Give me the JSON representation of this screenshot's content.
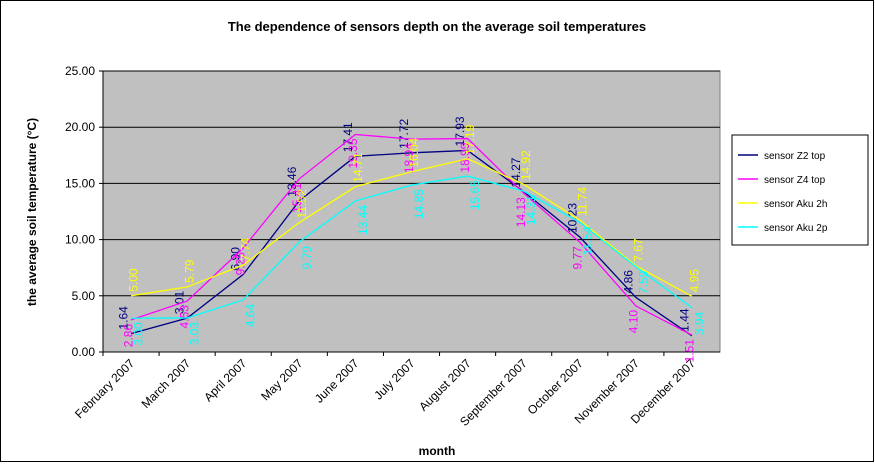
{
  "chart_data": {
    "type": "line",
    "title": "The dependence of sensors depth on the average soil temperatures",
    "x_label": "month",
    "y_label": "the average soil temperature (°C)",
    "categories": [
      "February 2007",
      "March 2007",
      "April 2007",
      "May 2007",
      "June 2007",
      "July 2007",
      "August 2007",
      "September 2007",
      "October 2007",
      "November 2007",
      "December 2007"
    ],
    "ylim": [
      0,
      25
    ],
    "yticks": [
      {
        "value": 0,
        "label": "0.00"
      },
      {
        "value": 5,
        "label": "5.00"
      },
      {
        "value": 10,
        "label": "10.00"
      },
      {
        "value": 15,
        "label": "15.00"
      },
      {
        "value": 20,
        "label": "20.00"
      },
      {
        "value": 25,
        "label": "25.00"
      }
    ],
    "grid": true,
    "legend": "right",
    "series": [
      {
        "name": "sensor Z2 top",
        "color": "#000080",
        "values": [
          1.64,
          3.01,
          6.9,
          13.46,
          17.41,
          17.72,
          17.93,
          14.27,
          10.23,
          4.86,
          1.44
        ],
        "value_labels": [
          "1.64",
          "3.01",
          "6.90",
          "13.46",
          "17.41",
          "17.72",
          "17.93",
          "14.27",
          "10.23",
          "4.86",
          "1.44"
        ]
      },
      {
        "name": "sensor Z4 top",
        "color": "#FF00FF",
        "values": [
          2.86,
          4.53,
          9.25,
          15.41,
          19.35,
          18.94,
          18.99,
          14.13,
          9.77,
          4.1,
          1.51
        ],
        "value_labels": [
          "2.86",
          "4.53",
          "9.25",
          "15.41",
          "19.35",
          "18.94",
          "18.99",
          "14.13",
          "9.77",
          "4.10",
          "1.51"
        ]
      },
      {
        "name": "sensor Aku 2h",
        "color": "#FFFF00",
        "values": [
          5,
          5.79,
          7.74,
          11.52,
          14.71,
          16.04,
          17.19,
          14.92,
          11.74,
          7.67,
          4.95
        ],
        "value_labels": [
          "5.00",
          "5.79",
          "7.74",
          "11.52",
          "14.71",
          "16.04",
          "17.19",
          "14.92",
          "11.74",
          "7.67",
          "4.95"
        ]
      },
      {
        "name": "sensor Aku 2p",
        "color": "#00FFFF",
        "values": [
          3,
          3.03,
          4.64,
          9.79,
          13.44,
          14.85,
          15.65,
          14.31,
          11.54,
          7.59,
          3.94
        ],
        "value_labels": [
          "3.00",
          "3.03",
          "4.64",
          "9.79",
          "13.44",
          "14.85",
          "15.65",
          "14.31",
          "11.54",
          "7.59",
          "3.94"
        ]
      }
    ]
  }
}
